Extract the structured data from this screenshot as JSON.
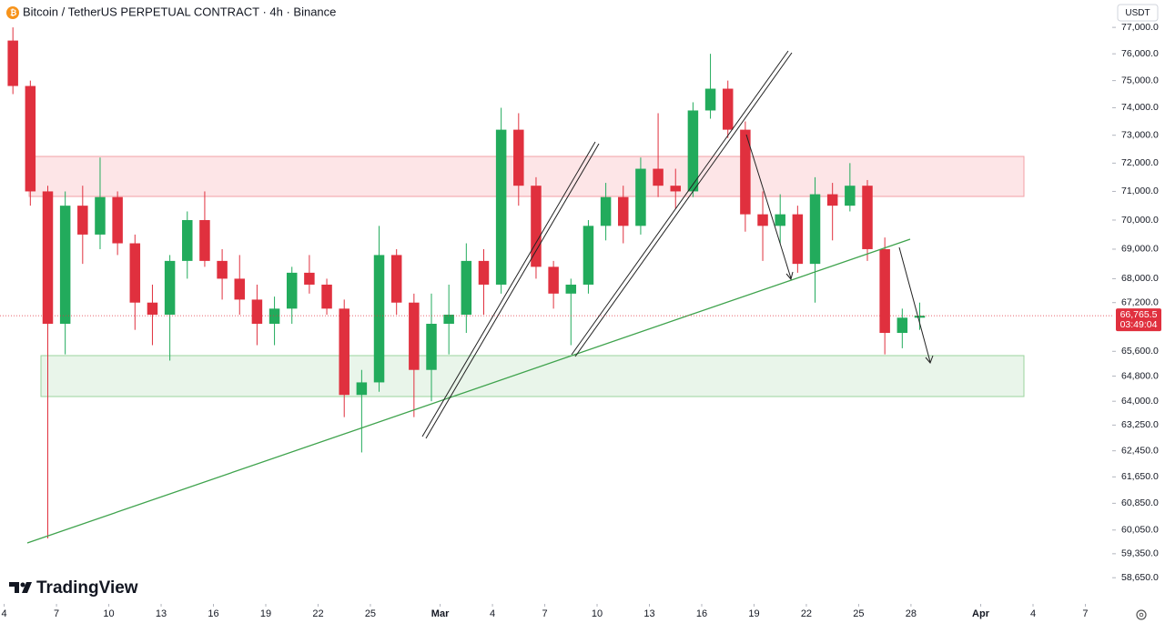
{
  "header": {
    "title": "Bitcoin / TetherUS PERPETUAL CONTRACT · 4h · Binance",
    "currency": "USDT"
  },
  "brand": "TradingView",
  "chart_data": {
    "type": "candlestick",
    "x": [
      4,
      5,
      6,
      7,
      8,
      9,
      10,
      11,
      12,
      13,
      14,
      15,
      16,
      17,
      18,
      19,
      20,
      21,
      22,
      23,
      24,
      25,
      26,
      27,
      28,
      29,
      30,
      31,
      32,
      33,
      34,
      35,
      36,
      37,
      38,
      39,
      40,
      41,
      42,
      43,
      44,
      45,
      46,
      47,
      48,
      49,
      50,
      51,
      52,
      53,
      54,
      55,
      56
    ],
    "open": [
      76500,
      74800,
      71000,
      66500,
      70500,
      69500,
      70800,
      69200,
      67200,
      66800,
      68600,
      70000,
      68600,
      68000,
      67300,
      66500,
      67000,
      68200,
      67800,
      67000,
      64200,
      64600,
      68800,
      67200,
      65000,
      66500,
      66800,
      68600,
      67800,
      73200,
      71200,
      68400,
      67500,
      67800,
      69800,
      70800,
      69800,
      71800,
      71200,
      71000,
      73900,
      74700,
      73200,
      70200,
      69800,
      70200,
      68500,
      70900,
      70500,
      71200,
      69000,
      66200,
      66700
    ],
    "high": [
      77000,
      75000,
      71200,
      71000,
      71200,
      72200,
      71000,
      69500,
      67800,
      68800,
      70300,
      71000,
      69000,
      68800,
      67800,
      67400,
      68400,
      68800,
      68000,
      67300,
      65000,
      69800,
      69000,
      67500,
      67500,
      67800,
      69200,
      69000,
      74000,
      73800,
      71500,
      68600,
      68000,
      70000,
      71300,
      71200,
      72200,
      73800,
      71800,
      74200,
      76000,
      75000,
      73500,
      71000,
      70900,
      70500,
      71500,
      71300,
      72000,
      71400,
      69400,
      67000,
      67200
    ],
    "low": [
      74500,
      70500,
      59800,
      65500,
      68500,
      69000,
      68800,
      66300,
      65800,
      65300,
      68000,
      68400,
      67300,
      66800,
      65800,
      65800,
      66500,
      67500,
      66800,
      63500,
      62400,
      64300,
      66800,
      63500,
      64000,
      65500,
      66200,
      66800,
      67500,
      70500,
      68000,
      67000,
      65800,
      67500,
      69300,
      69200,
      69500,
      70800,
      70400,
      70800,
      73600,
      72900,
      69600,
      68600,
      69200,
      68200,
      67200,
      69300,
      70300,
      68600,
      65500,
      65700,
      66300
    ],
    "close": [
      74800,
      71000,
      66500,
      70500,
      69500,
      70800,
      69200,
      67200,
      66800,
      68600,
      70000,
      68600,
      68000,
      67300,
      66500,
      67000,
      68200,
      67800,
      67000,
      64200,
      64600,
      68800,
      67200,
      65000,
      66500,
      66800,
      68600,
      67800,
      73200,
      71200,
      68400,
      67500,
      67800,
      69800,
      70800,
      69800,
      71800,
      71200,
      71000,
      73900,
      74700,
      73200,
      70200,
      69800,
      70200,
      68500,
      70900,
      70500,
      71200,
      69000,
      66200,
      66700,
      66765.5
    ],
    "up_color": "#22ab5c",
    "down_color": "#e0303e",
    "last_price": {
      "value": 66765.5,
      "label": "66,765.5"
    },
    "countdown": "03:49:04",
    "log_scale": true,
    "xlim": [
      3.76,
      67.54
    ],
    "xticks": [
      4,
      7,
      10,
      13,
      16,
      19,
      22,
      25,
      {
        "value": 29,
        "label": "Mar"
      },
      {
        "value": 32,
        "label": "4"
      },
      {
        "value": 35,
        "label": "7"
      },
      {
        "value": 38,
        "label": "10"
      },
      {
        "value": 41,
        "label": "13"
      },
      {
        "value": 44,
        "label": "16"
      },
      {
        "value": 47,
        "label": "19"
      },
      {
        "value": 50,
        "label": "22"
      },
      {
        "value": 53,
        "label": "25"
      },
      {
        "value": 56,
        "label": "28"
      },
      {
        "value": 60,
        "label": "Apr"
      },
      {
        "value": 63,
        "label": "4"
      },
      {
        "value": 66,
        "label": "7"
      }
    ],
    "ylim": [
      58000,
      78050
    ],
    "yticks": [
      {
        "value": 77000,
        "label": "77,000.0"
      },
      {
        "value": 76000,
        "label": "76,000.0"
      },
      {
        "value": 75000,
        "label": "75,000.0"
      },
      {
        "value": 74000,
        "label": "74,000.0"
      },
      {
        "value": 73000,
        "label": "73,000.0"
      },
      {
        "value": 72000,
        "label": "72,000.0"
      },
      {
        "value": 71000,
        "label": "71,000.0"
      },
      {
        "value": 70000,
        "label": "70,000.0"
      },
      {
        "value": 69000,
        "label": "69,000.0"
      },
      {
        "value": 68000,
        "label": "68,000.0"
      },
      {
        "value": 67200,
        "label": "67,200.0"
      },
      {
        "value": 65600,
        "label": "65,600.0"
      },
      {
        "value": 64800,
        "label": "64,800.0"
      },
      {
        "value": 64000,
        "label": "64,000.0"
      },
      {
        "value": 63250,
        "label": "63,250.0"
      },
      {
        "value": 62450,
        "label": "62,450.0"
      },
      {
        "value": 61650,
        "label": "61,650.0"
      },
      {
        "value": 60850,
        "label": "60,850.0"
      },
      {
        "value": 60050,
        "label": "60,050.0"
      },
      {
        "value": 59350,
        "label": "59,350.0"
      },
      {
        "value": 58650,
        "label": "58,650.0"
      }
    ],
    "grid": false
  }
}
